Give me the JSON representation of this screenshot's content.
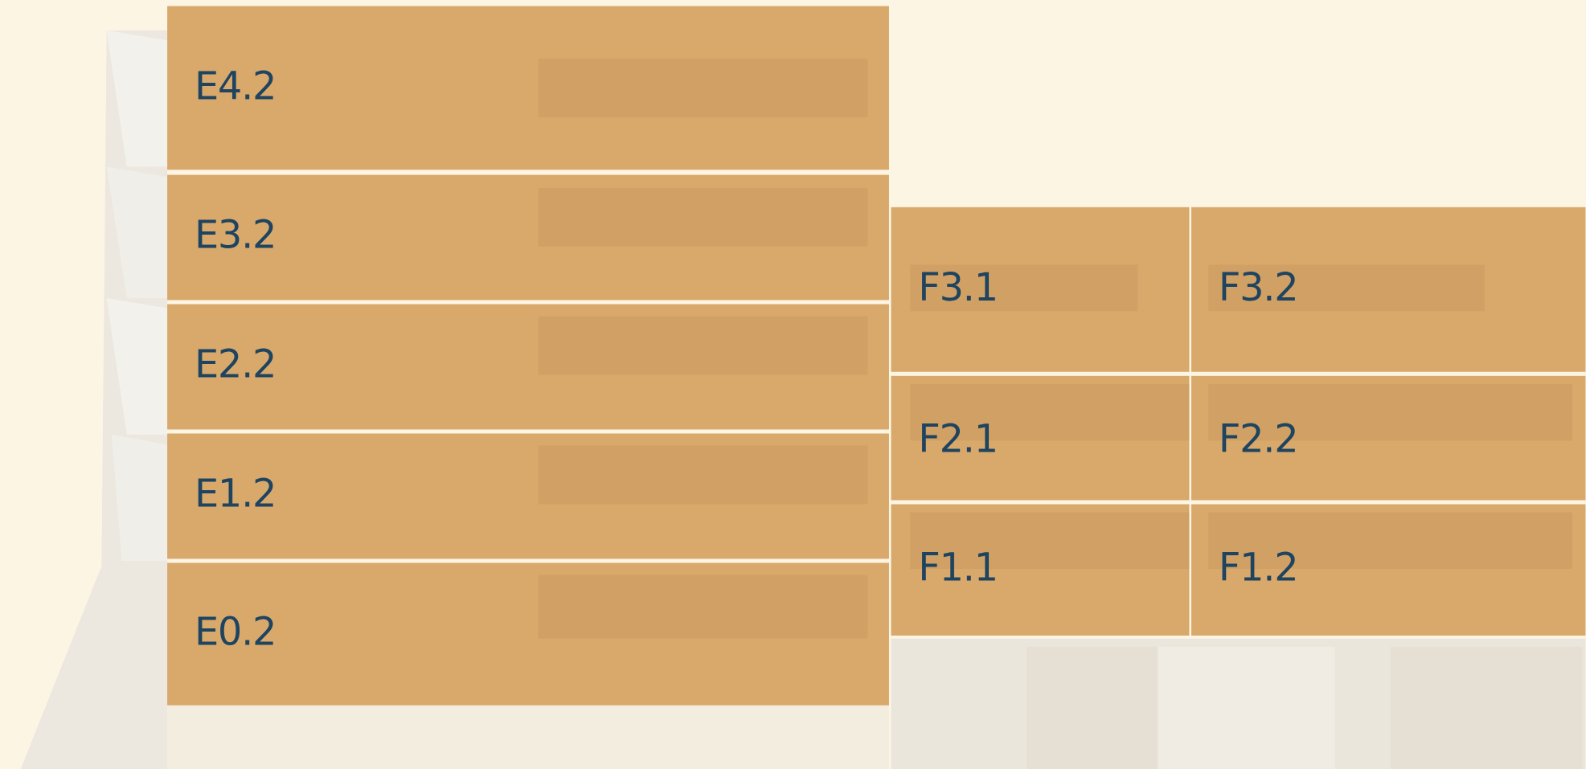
{
  "units": [
    "E4.2",
    "E3.2",
    "E2.2",
    "E1.2",
    "E0.2",
    "F3.1",
    "F3.2",
    "F2.1",
    "F2.2",
    "F1.1",
    "F1.2"
  ]
}
